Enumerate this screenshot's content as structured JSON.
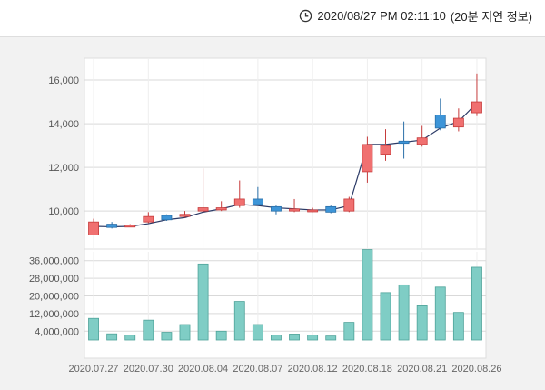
{
  "header": {
    "timestamp": "2020/08/27 PM 02:11:10",
    "delay_note": "(20분 지연 정보)",
    "clock_icon": "clock-icon"
  },
  "colors": {
    "up": "#f07070",
    "down": "#3d95d8",
    "ma_line": "#2b3a66",
    "volume_bar": "#7fcdc5",
    "grid": "#d9d9d9"
  },
  "chart_data": [
    {
      "type": "candlestick",
      "title": "",
      "ylim": [
        8300,
        17000
      ],
      "y_ticks": [
        10000,
        12000,
        14000,
        16000
      ],
      "y_tick_labels": [
        "10,000",
        "12,000",
        "14,000",
        "16,000"
      ],
      "grid": true,
      "candles": [
        {
          "open": 8900,
          "close": 9500,
          "high": 9650,
          "low": 8900
        },
        {
          "open": 9400,
          "close": 9250,
          "high": 9500,
          "low": 9200
        },
        {
          "open": 9300,
          "close": 9350,
          "high": 9400,
          "low": 9300
        },
        {
          "open": 9500,
          "close": 9750,
          "high": 9950,
          "low": 9450
        },
        {
          "open": 9800,
          "close": 9600,
          "high": 9850,
          "low": 9550
        },
        {
          "open": 9750,
          "close": 9850,
          "high": 10000,
          "low": 9700
        },
        {
          "open": 10000,
          "close": 10150,
          "high": 11950,
          "low": 9950
        },
        {
          "open": 10050,
          "close": 10150,
          "high": 10450,
          "low": 10000
        },
        {
          "open": 10250,
          "close": 10550,
          "high": 11400,
          "low": 10150
        },
        {
          "open": 10550,
          "close": 10300,
          "high": 11100,
          "low": 10250
        },
        {
          "open": 10200,
          "close": 10000,
          "high": 10250,
          "low": 9850
        },
        {
          "open": 10000,
          "close": 10100,
          "high": 10550,
          "low": 9950
        },
        {
          "open": 10000,
          "close": 10050,
          "high": 10150,
          "low": 9950
        },
        {
          "open": 10200,
          "close": 9950,
          "high": 10250,
          "low": 9900
        },
        {
          "open": 10000,
          "close": 10550,
          "high": 10650,
          "low": 9950
        },
        {
          "open": 11800,
          "close": 13050,
          "high": 13400,
          "low": 11300
        },
        {
          "open": 12600,
          "close": 13000,
          "high": 13750,
          "low": 12300
        },
        {
          "open": 13200,
          "close": 13100,
          "high": 14100,
          "low": 12400
        },
        {
          "open": 13050,
          "close": 13350,
          "high": 13900,
          "low": 12950
        },
        {
          "open": 14400,
          "close": 13800,
          "high": 15150,
          "low": 13700
        },
        {
          "open": 13850,
          "close": 14250,
          "high": 14700,
          "low": 13650
        },
        {
          "open": 14500,
          "close": 15000,
          "high": 16300,
          "low": 14350
        }
      ],
      "moving_average": [
        9300,
        9280,
        9300,
        9420,
        9600,
        9700,
        9950,
        10100,
        10300,
        10250,
        10150,
        10100,
        10050,
        10050,
        10250,
        13050,
        13050,
        13150,
        13250,
        13800,
        14100,
        14950
      ]
    },
    {
      "type": "bar",
      "title": "",
      "ylim": [
        0,
        40000000
      ],
      "y_ticks": [
        4000000,
        12000000,
        20000000,
        28000000,
        36000000
      ],
      "y_tick_labels": [
        "4,000,000",
        "12,000,000",
        "20,000,000",
        "28,000,000",
        "36,000,000"
      ],
      "x_tick_labels": [
        "2020.07.27",
        "2020.07.30",
        "2020.08.04",
        "2020.08.07",
        "2020.08.12",
        "2020.08.18",
        "2020.08.21",
        "2020.08.26"
      ],
      "values": [
        9800000,
        2800000,
        2200000,
        9000000,
        3500000,
        7000000,
        34500000,
        4000000,
        17500000,
        7000000,
        2200000,
        2700000,
        2200000,
        1800000,
        8000000,
        41000000,
        21500000,
        25000000,
        15500000,
        24000000,
        12500000,
        33000000
      ],
      "grid": true
    }
  ]
}
